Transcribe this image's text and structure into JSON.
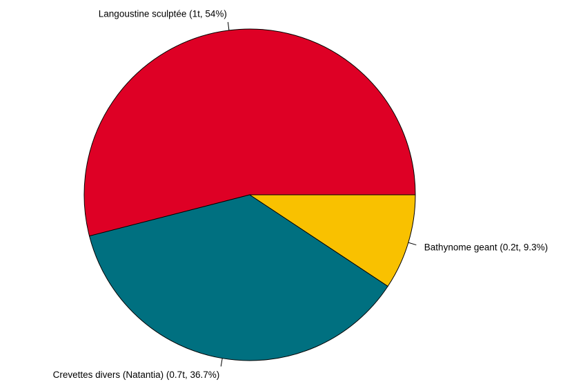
{
  "chart_data": {
    "type": "pie",
    "title": "",
    "start": "horizontal-right",
    "direction": "counterclockwise",
    "slices": [
      {
        "label": "Langoustine sculptée (1t, 54%)",
        "value": 54.0,
        "color": "#DE0025"
      },
      {
        "label": "Crevettes divers (Natantia) (0.7t, 36.7%)",
        "value": 36.7,
        "color": "#007080"
      },
      {
        "label": "Bathynome geant (0.2t, 9.3%)",
        "value": 9.3,
        "color": "#F9C100"
      }
    ]
  }
}
